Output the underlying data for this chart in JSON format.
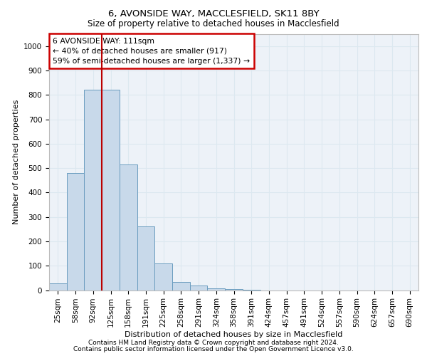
{
  "title1": "6, AVONSIDE WAY, MACCLESFIELD, SK11 8BY",
  "title2": "Size of property relative to detached houses in Macclesfield",
  "xlabel": "Distribution of detached houses by size in Macclesfield",
  "ylabel": "Number of detached properties",
  "bar_labels": [
    "25sqm",
    "58sqm",
    "92sqm",
    "125sqm",
    "158sqm",
    "191sqm",
    "225sqm",
    "258sqm",
    "291sqm",
    "324sqm",
    "358sqm",
    "391sqm",
    "424sqm",
    "457sqm",
    "491sqm",
    "524sqm",
    "557sqm",
    "590sqm",
    "624sqm",
    "657sqm",
    "690sqm"
  ],
  "bar_values": [
    28,
    480,
    820,
    820,
    515,
    260,
    110,
    35,
    18,
    8,
    4,
    1,
    0,
    0,
    0,
    0,
    0,
    0,
    0,
    0,
    0
  ],
  "bar_color": "#c8d9ea",
  "bar_edge_color": "#6a9cbf",
  "grid_color": "#dce8f0",
  "bg_color": "#edf2f8",
  "vline_color": "#bb0000",
  "vline_x": 2.5,
  "annotation_text": "6 AVONSIDE WAY: 111sqm\n← 40% of detached houses are smaller (917)\n59% of semi-detached houses are larger (1,337) →",
  "annotation_box_color": "#ffffff",
  "annotation_box_edge": "#cc0000",
  "footer1": "Contains HM Land Registry data © Crown copyright and database right 2024.",
  "footer2": "Contains public sector information licensed under the Open Government Licence v3.0.",
  "ylim": [
    0,
    1050
  ],
  "yticks": [
    0,
    100,
    200,
    300,
    400,
    500,
    600,
    700,
    800,
    900,
    1000
  ],
  "title1_fontsize": 9.5,
  "title2_fontsize": 8.5,
  "xlabel_fontsize": 8,
  "ylabel_fontsize": 8,
  "tick_fontsize": 7.5,
  "footer_fontsize": 6.5
}
